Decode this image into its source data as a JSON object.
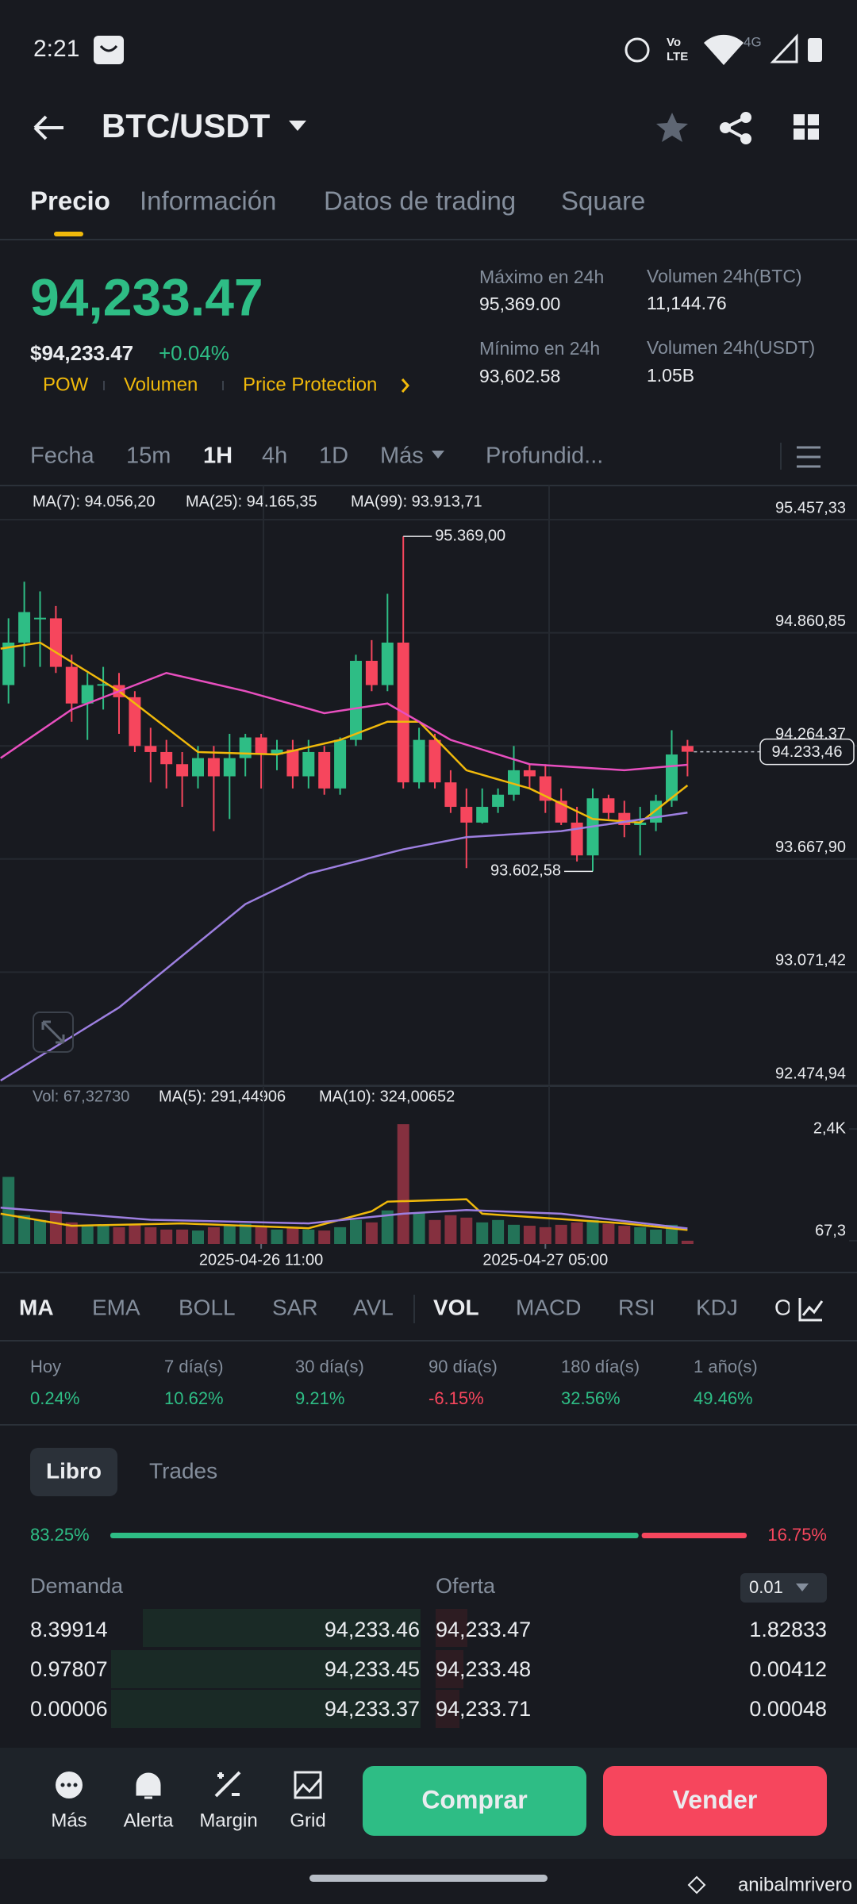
{
  "status_bar": {
    "time": "2:21",
    "volte": [
      "Vo",
      "LTE"
    ],
    "network": "4G"
  },
  "header": {
    "pair": "BTC/USDT"
  },
  "tabs": [
    "Precio",
    "Información",
    "Datos de trading",
    "Square"
  ],
  "price": {
    "last": "94,233.47",
    "fiat": "$94,233.47",
    "change": "+0.04%",
    "tags": [
      "POW",
      "Volumen",
      "Price Protection"
    ]
  },
  "stats": [
    {
      "label": "Máximo en 24h",
      "value": "95,369.00"
    },
    {
      "label": "Mínimo en 24h",
      "value": "93,602.58"
    },
    {
      "label": "Volumen 24h(BTC)",
      "value": "11,144.76"
    },
    {
      "label": "Volumen 24h(USDT)",
      "value": "1.05B"
    }
  ],
  "intervals": [
    "Fecha",
    "15m",
    "1H",
    "4h",
    "1D",
    "Más",
    "Profundid..."
  ],
  "chart_data": [
    {
      "type": "candlestick",
      "up_color": "#2ebd85",
      "down_color": "#f6465d",
      "ylim": [
        92474.94,
        95457.33
      ],
      "yticks": [
        {
          "value": 95457.33,
          "label": "95.457,33"
        },
        {
          "value": 94860.85,
          "label": "94.860,85"
        },
        {
          "value": 94264.37,
          "label": "94.264,37"
        },
        {
          "value": 93667.9,
          "label": "93.667,90"
        },
        {
          "value": 93071.42,
          "label": "93.071,42"
        },
        {
          "value": 92474.94,
          "label": "92.474,94"
        }
      ],
      "grid": true,
      "candles": {
        "open": [
          94585,
          94809,
          94937,
          94937,
          94681,
          94488,
          94585,
          94585,
          94521,
          94264,
          94232,
          94168,
          94104,
          94200,
          94104,
          94200,
          94309,
          94219,
          94245,
          94104,
          94232,
          94040,
          94296,
          94713,
          94585,
          94809,
          94072,
          94296,
          94072,
          93943,
          93860,
          93943,
          94007,
          94136,
          94104,
          93975,
          93860,
          93687,
          93988,
          93911,
          93847,
          93860,
          93975,
          94264
        ],
        "high": [
          94937,
          95130,
          95079,
          95002,
          94745,
          94649,
          94681,
          94649,
          94553,
          94360,
          94296,
          94232,
          94264,
          94264,
          94328,
          94328,
          94328,
          94296,
          94296,
          94296,
          94264,
          94309,
          94745,
          94822,
          95066,
          95369,
          94360,
          94328,
          94136,
          94040,
          94040,
          94040,
          94264,
          94168,
          94168,
          94040,
          93943,
          94040,
          94007,
          93975,
          93943,
          94007,
          94347,
          94296
        ],
        "low": [
          94488,
          94681,
          94681,
          94649,
          94392,
          94296,
          94456,
          94328,
          94232,
          94072,
          94040,
          93943,
          94040,
          93815,
          93879,
          94104,
          94040,
          94136,
          94040,
          94040,
          94007,
          94007,
          94264,
          94553,
          94553,
          94040,
          94040,
          94040,
          93911,
          93620,
          93855,
          93911,
          93975,
          94040,
          93911,
          93847,
          93655,
          93602.58,
          93879,
          93783,
          93687,
          93815,
          93943,
          94104
        ],
        "close": [
          94809,
          94970,
          94940,
          94681,
          94488,
          94585,
          94590,
          94521,
          94264,
          94232,
          94168,
          94104,
          94200,
          94104,
          94200,
          94309,
          94219,
          94245,
          94104,
          94232,
          94040,
          94296,
          94713,
          94585,
          94809,
          94072,
          94296,
          94072,
          93943,
          93860,
          93943,
          94007,
          94136,
          94104,
          93975,
          93860,
          93687,
          93988,
          93911,
          93847,
          93860,
          93975,
          94219,
          94233.46
        ]
      },
      "series": [
        {
          "name": "MA(7): 94.056,20",
          "color": "#f0b90b",
          "x": [
            -0.5,
            2,
            7,
            12,
            17,
            21,
            24,
            26,
            29,
            33,
            37,
            40,
            43
          ],
          "values": [
            94777,
            94809,
            94553,
            94232,
            94219,
            94296,
            94392,
            94392,
            94136,
            94040,
            93879,
            93860,
            94056
          ]
        },
        {
          "name": "MA(25): 94.165,35",
          "color": "#e84fbf",
          "x": [
            -0.5,
            4,
            10,
            15,
            20,
            24,
            28,
            33,
            39,
            43
          ],
          "values": [
            94200,
            94456,
            94649,
            94553,
            94437,
            94488,
            94296,
            94168,
            94136,
            94165
          ]
        },
        {
          "name": "MA(99): 93.913,71",
          "color": "#9d7fe0",
          "x": [
            -0.5,
            7,
            15,
            19,
            25,
            29,
            35,
            43
          ],
          "values": [
            92500,
            92885,
            93430,
            93591,
            93719,
            93783,
            93815,
            93913
          ]
        }
      ],
      "annotations": {
        "high": "95.369,00",
        "low": "93.602,58",
        "last": "94.233,46"
      }
    },
    {
      "type": "bar",
      "title": "Vol: 67,32730",
      "up_color": "#237358",
      "down_color": "#85303f",
      "ylim": [
        0,
        2650
      ],
      "yticks": [
        {
          "value": 2400,
          "label": "2,4K"
        },
        {
          "value": 67.3,
          "label": "67,3"
        }
      ],
      "xticks": [
        {
          "value": 16,
          "label": "2025-04-26 11:00"
        },
        {
          "value": 34,
          "label": "2025-04-27 05:00"
        }
      ],
      "values": [
        1400,
        600,
        500,
        700,
        450,
        400,
        380,
        350,
        420,
        350,
        300,
        300,
        280,
        350,
        400,
        420,
        380,
        300,
        330,
        300,
        280,
        350,
        500,
        450,
        700,
        2500,
        650,
        500,
        600,
        550,
        450,
        500,
        400,
        380,
        350,
        400,
        450,
        500,
        420,
        380,
        350,
        300,
        400,
        67.3273
      ],
      "series": [
        {
          "name": "MA(5): 291,44906",
          "color": "#f0b90b",
          "x": [
            -0.5,
            4,
            11,
            19,
            23,
            24,
            29,
            30,
            39,
            43
          ],
          "values": [
            631,
            379,
            429,
            328,
            681,
            883,
            934,
            631,
            429,
            291
          ]
        },
        {
          "name": "MA(10): 324,00652",
          "color": "#9d7fe0",
          "x": [
            -0.5,
            9,
            19,
            25,
            29,
            35,
            43
          ],
          "values": [
            757,
            505,
            429,
            631,
            707,
            631,
            324
          ]
        }
      ]
    }
  ],
  "indicators": {
    "main": [
      "MA",
      "EMA",
      "BOLL",
      "SAR",
      "AVL"
    ],
    "sub": [
      "VOL",
      "MACD",
      "RSI",
      "KDJ",
      "O"
    ]
  },
  "performance": [
    {
      "label": "Hoy",
      "value": "0.24%"
    },
    {
      "label": "7 día(s)",
      "value": "10.62%"
    },
    {
      "label": "30 día(s)",
      "value": "9.21%"
    },
    {
      "label": "90 día(s)",
      "value": "-6.15%"
    },
    {
      "label": "180 día(s)",
      "value": "32.56%"
    },
    {
      "label": "1 año(s)",
      "value": "49.46%"
    }
  ],
  "order_book": {
    "tabs": [
      "Libro",
      "Trades"
    ],
    "bid_ratio": {
      "value": 83.25,
      "label": "83.25%"
    },
    "ask_ratio": {
      "value": 16.75,
      "label": "16.75%"
    },
    "headers": [
      "Demanda",
      "Oferta"
    ],
    "step": "0.01",
    "rows": [
      [
        "8.39914",
        "94,233.46",
        "94,233.47",
        "1.82833"
      ],
      [
        "0.97807",
        "94,233.45",
        "94,233.48",
        "0.00412"
      ],
      [
        "0.00006",
        "94,233.37",
        "94,233.71",
        "0.00048"
      ]
    ]
  },
  "bottom_bar": {
    "actions": [
      "Más",
      "Alerta",
      "Margin",
      "Grid"
    ],
    "buy": "Comprar",
    "sell": "Vender"
  },
  "watermark": "anibalmrivero"
}
